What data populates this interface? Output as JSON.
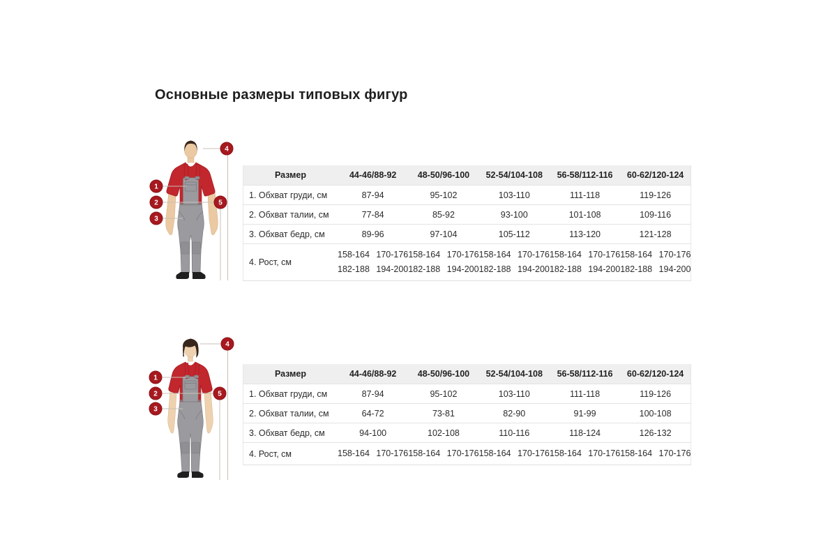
{
  "page": {
    "title": "Основные размеры типовых фигур"
  },
  "markers": [
    "1",
    "2",
    "3",
    "4",
    "5"
  ],
  "colors": {
    "accent_red": "#a6191f",
    "shirt_red": "#c1272d",
    "overall_gray": "#9b9b9f",
    "table_header_bg": "#efefef"
  },
  "tables": [
    {
      "header": [
        "Размер",
        "44-46/88-92",
        "48-50/96-100",
        "52-54/104-108",
        "56-58/112-116",
        "60-62/120-124"
      ],
      "rows": [
        {
          "label": "1. Обхват груди, см",
          "values": [
            "87-94",
            "95-102",
            "103-110",
            "111-118",
            "119-126"
          ]
        },
        {
          "label": "2. Обхват талии, см",
          "values": [
            "77-84",
            "85-92",
            "93-100",
            "101-108",
            "109-116"
          ]
        },
        {
          "label": "3. Обхват бедр, см",
          "values": [
            "89-96",
            "97-104",
            "105-112",
            "113-120",
            "121-128"
          ]
        },
        {
          "label": "4. Рост, см",
          "values": [
            [
              "158-164 170-176",
              "182-188 194-200"
            ],
            [
              "158-164 170-176",
              "182-188 194-200"
            ],
            [
              "158-164 170-176",
              "182-188 194-200"
            ],
            [
              "158-164 170-176",
              "182-188 194-200"
            ],
            [
              "158-164 170-176",
              "182-188 194-200"
            ]
          ]
        }
      ]
    },
    {
      "header": [
        "Размер",
        "44-46/88-92",
        "48-50/96-100",
        "52-54/104-108",
        "56-58/112-116",
        "60-62/120-124"
      ],
      "rows": [
        {
          "label": "1. Обхват груди, см",
          "values": [
            "87-94",
            "95-102",
            "103-110",
            "111-118",
            "119-126"
          ]
        },
        {
          "label": "2. Обхват талии, см",
          "values": [
            "64-72",
            "73-81",
            "82-90",
            "91-99",
            "100-108"
          ]
        },
        {
          "label": "3. Обхват бедр, см",
          "values": [
            "94-100",
            "102-108",
            "110-116",
            "118-124",
            "126-132"
          ]
        },
        {
          "label": "4. Рост, см",
          "values": [
            [
              "158-164 170-176"
            ],
            [
              "158-164 170-176"
            ],
            [
              "158-164 170-176"
            ],
            [
              "158-164 170-176"
            ],
            [
              "158-164 170-176"
            ]
          ]
        }
      ]
    }
  ]
}
